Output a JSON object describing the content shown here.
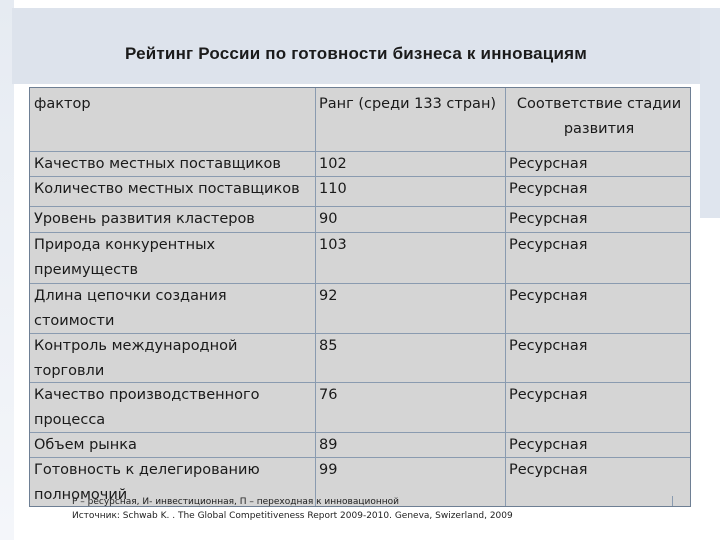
{
  "title": "Рейтинг России по готовности бизнеса к инновациям",
  "table": {
    "headers": [
      "фактор",
      "Ранг (среди 133 стран)",
      "Соответствие стадии развития"
    ],
    "rows": [
      {
        "factor": "Качество местных поставщиков",
        "rank": "102",
        "stage": "Ресурсная"
      },
      {
        "factor": "Количество местных поставщиков",
        "rank": "110",
        "stage": "Ресурсная"
      },
      {
        "factor": "Уровень развития кластеров",
        "rank": "90",
        "stage": "Ресурсная"
      },
      {
        "factor": "Природа конкурентных преимуществ",
        "rank": "103",
        "stage": "Ресурсная"
      },
      {
        "factor": "Длина цепочки создания стоимости",
        "rank": "92",
        "stage": "Ресурсная"
      },
      {
        "factor": "Контроль международной торговли",
        "rank": "85",
        "stage": "Ресурсная"
      },
      {
        "factor": "Качество производственного процесса",
        "rank": "76",
        "stage": "Ресурсная"
      },
      {
        "factor": "Объем рынка",
        "rank": "89",
        "stage": "Ресурсная"
      },
      {
        "factor": "Готовность к делегированию полномочий",
        "rank": "99",
        "stage": "Ресурсная"
      }
    ]
  },
  "notes": {
    "legend": "Р – ресурсная, И- инвестиционная, П – переходная к инновационной",
    "source": "Источник: Schwab K. . The Global Competitiveness Report 2009-2010. Geneva, Swizerland, 2009"
  }
}
